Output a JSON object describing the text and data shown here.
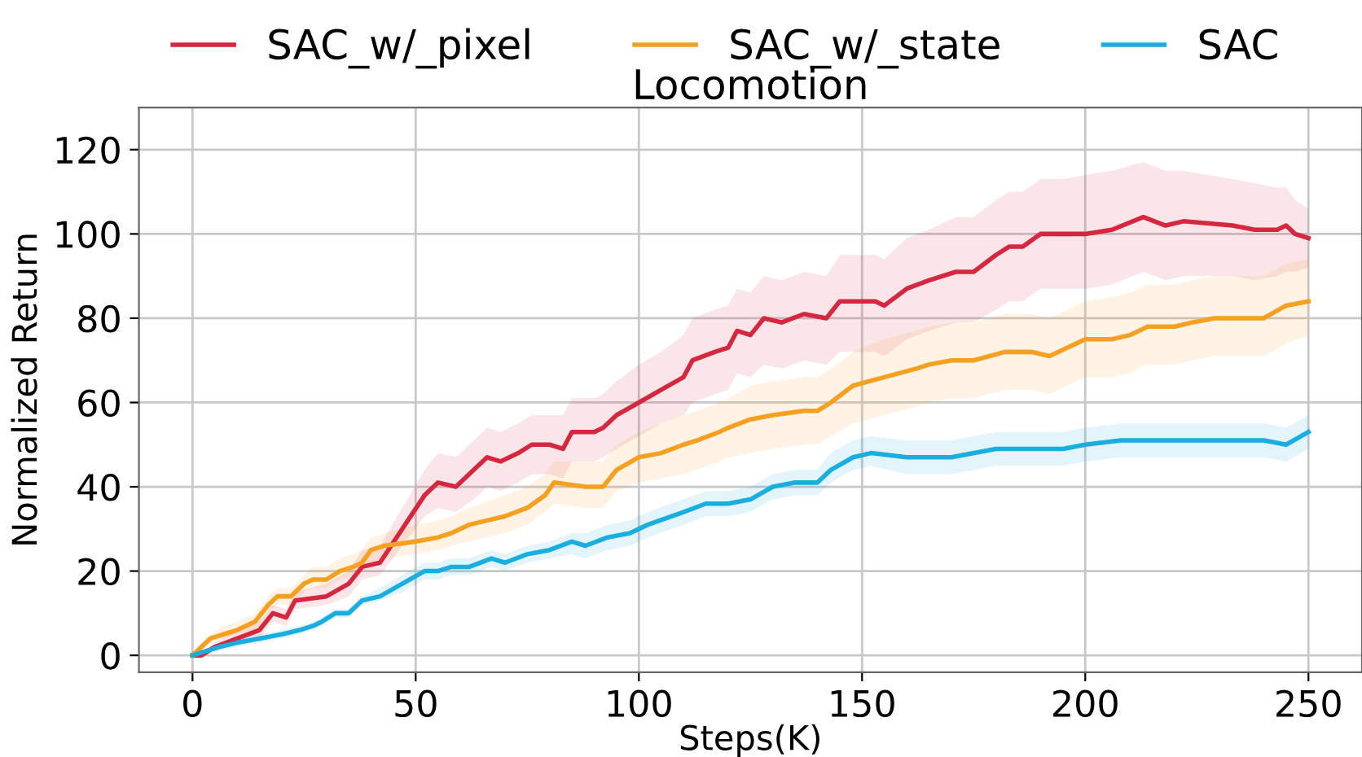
{
  "chart_data": {
    "type": "line",
    "title": "Locomotion",
    "xlabel": "Steps(K)",
    "ylabel": "Normalized Return",
    "xlim": [
      -12,
      262
    ],
    "ylim": [
      -4,
      130
    ],
    "xticks": [
      0,
      50,
      100,
      150,
      200,
      250
    ],
    "yticks": [
      0,
      20,
      40,
      60,
      80,
      100,
      120
    ],
    "grid": true,
    "legend": "top",
    "line_style": "solid",
    "marker": "none",
    "series": [
      {
        "name": "SAC_w/_pixel",
        "color": "#d62740",
        "x": [
          0,
          2,
          5,
          10,
          15,
          18,
          21,
          23,
          30,
          35,
          38,
          42,
          47,
          52,
          55,
          59,
          63,
          66,
          69,
          73,
          76,
          80,
          83,
          85,
          90,
          92,
          95,
          100,
          105,
          110,
          112,
          117,
          120,
          122,
          125,
          128,
          132,
          137,
          142,
          145,
          153,
          155,
          160,
          165,
          171,
          175,
          180,
          183,
          186,
          190,
          195,
          200,
          206,
          213,
          218,
          222,
          233,
          238,
          243,
          245,
          247,
          250
        ],
        "values": [
          0,
          0,
          2,
          4,
          6,
          10,
          9,
          13,
          14,
          17,
          21,
          22,
          30,
          38,
          41,
          40,
          44,
          47,
          46,
          48,
          50,
          50,
          49,
          53,
          53,
          54,
          57,
          60,
          63,
          66,
          70,
          72,
          73,
          77,
          76,
          80,
          79,
          81,
          80,
          84,
          84,
          83,
          87,
          89,
          91,
          91,
          95,
          97,
          97,
          100,
          100,
          100,
          101,
          104,
          102,
          103,
          102,
          101,
          101,
          102,
          100,
          99
        ],
        "upper": [
          0,
          1,
          3,
          6,
          8,
          12,
          11,
          15,
          17,
          20,
          25,
          26,
          35,
          44,
          48,
          47,
          51,
          54,
          53,
          55,
          57,
          57,
          57,
          61,
          61,
          62,
          65,
          69,
          72,
          76,
          80,
          82,
          83,
          87,
          86,
          90,
          89,
          91,
          90,
          95,
          95,
          94,
          99,
          101,
          104,
          104,
          108,
          110,
          110,
          113,
          113,
          114,
          115,
          117,
          115,
          115,
          113,
          112,
          111,
          111,
          108,
          106
        ],
        "lower": [
          0,
          0,
          1,
          3,
          4,
          8,
          7,
          11,
          12,
          14,
          18,
          19,
          26,
          33,
          35,
          34,
          37,
          40,
          39,
          41,
          43,
          43,
          42,
          46,
          46,
          47,
          49,
          52,
          55,
          57,
          60,
          62,
          63,
          67,
          66,
          69,
          68,
          70,
          69,
          72,
          72,
          71,
          75,
          77,
          79,
          79,
          82,
          84,
          84,
          87,
          87,
          87,
          88,
          91,
          89,
          90,
          90,
          89,
          90,
          91,
          91,
          92
        ]
      },
      {
        "name": "SAC_w/_state",
        "color": "#f5a020",
        "x": [
          0,
          2,
          4,
          7,
          10,
          14,
          17,
          19,
          22,
          25,
          27,
          30,
          33,
          36,
          38,
          40,
          43,
          50,
          55,
          58,
          62,
          70,
          75,
          79,
          81,
          88,
          92,
          95,
          100,
          105,
          110,
          113,
          118,
          120,
          125,
          130,
          137,
          140,
          143,
          148,
          155,
          162,
          165,
          170,
          175,
          182,
          188,
          192,
          200,
          206,
          210,
          214,
          220,
          224,
          229,
          233,
          240,
          245,
          250
        ],
        "values": [
          0,
          2,
          4,
          5,
          6,
          8,
          12,
          14,
          14,
          17,
          18,
          18,
          20,
          21,
          22,
          25,
          26,
          27,
          28,
          29,
          31,
          33,
          35,
          38,
          41,
          40,
          40,
          44,
          47,
          48,
          50,
          51,
          53,
          54,
          56,
          57,
          58,
          58,
          60,
          64,
          66,
          68,
          69,
          70,
          70,
          72,
          72,
          71,
          75,
          75,
          76,
          78,
          78,
          79,
          80,
          80,
          80,
          83,
          84
        ],
        "upper": [
          0,
          3,
          5,
          7,
          8,
          10,
          14,
          16,
          16,
          19,
          21,
          21,
          23,
          24,
          25,
          28,
          29,
          31,
          32,
          33,
          35,
          38,
          40,
          43,
          46,
          46,
          46,
          50,
          53,
          55,
          57,
          58,
          60,
          61,
          64,
          65,
          66,
          66,
          68,
          72,
          75,
          77,
          78,
          79,
          79,
          81,
          81,
          80,
          84,
          85,
          86,
          88,
          88,
          89,
          90,
          90,
          90,
          93,
          94
        ],
        "lower": [
          0,
          1,
          3,
          4,
          5,
          6,
          10,
          12,
          12,
          15,
          16,
          16,
          18,
          19,
          20,
          22,
          23,
          24,
          25,
          26,
          27,
          29,
          31,
          34,
          36,
          35,
          35,
          39,
          41,
          42,
          43,
          44,
          46,
          47,
          48,
          49,
          50,
          50,
          52,
          55,
          57,
          59,
          60,
          61,
          61,
          63,
          63,
          62,
          66,
          66,
          67,
          69,
          69,
          70,
          71,
          71,
          71,
          74,
          76
        ]
      },
      {
        "name": "SAC",
        "color": "#1aaee0",
        "x": [
          0,
          3,
          6,
          10,
          15,
          20,
          24,
          27,
          29,
          32,
          35,
          38,
          42,
          47,
          52,
          55,
          58,
          62,
          67,
          70,
          75,
          80,
          85,
          88,
          93,
          98,
          102,
          110,
          115,
          120,
          125,
          130,
          135,
          140,
          143,
          148,
          152,
          160,
          170,
          180,
          190,
          195,
          200,
          208,
          215,
          225,
          232,
          240,
          245,
          250
        ],
        "values": [
          0,
          1,
          2,
          3,
          4,
          5,
          6,
          7,
          8,
          10,
          10,
          13,
          14,
          17,
          20,
          20,
          21,
          21,
          23,
          22,
          24,
          25,
          27,
          26,
          28,
          29,
          31,
          34,
          36,
          36,
          37,
          40,
          41,
          41,
          44,
          47,
          48,
          47,
          47,
          49,
          49,
          49,
          50,
          51,
          51,
          51,
          51,
          51,
          50,
          53
        ],
        "upper": [
          0,
          1,
          3,
          4,
          5,
          6,
          7,
          8,
          9,
          11,
          11,
          14,
          16,
          19,
          22,
          22,
          23,
          23,
          25,
          24,
          26,
          27,
          29,
          29,
          31,
          32,
          34,
          37,
          39,
          39,
          40,
          43,
          44,
          44,
          48,
          51,
          52,
          51,
          51,
          53,
          53,
          53,
          54,
          55,
          55,
          55,
          55,
          55,
          54,
          57
        ],
        "lower": [
          0,
          1,
          1,
          2,
          3,
          4,
          5,
          6,
          7,
          9,
          9,
          12,
          13,
          15,
          18,
          18,
          19,
          19,
          21,
          20,
          22,
          23,
          24,
          23,
          25,
          26,
          28,
          31,
          33,
          33,
          34,
          37,
          38,
          38,
          41,
          44,
          45,
          43,
          43,
          45,
          45,
          45,
          46,
          47,
          47,
          47,
          47,
          47,
          46,
          49
        ]
      }
    ]
  }
}
